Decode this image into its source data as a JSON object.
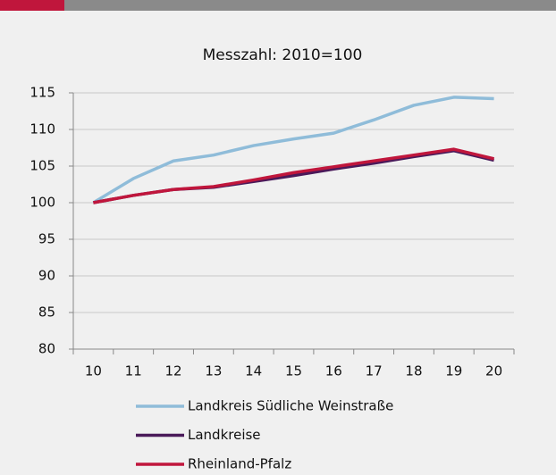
{
  "chart_data": {
    "type": "line",
    "title": "Messzahl: 2010=100",
    "categories": [
      "10",
      "11",
      "12",
      "13",
      "14",
      "15",
      "16",
      "17",
      "18",
      "19",
      "20"
    ],
    "series": [
      {
        "name": "Landkreis Südliche Weinstraße",
        "color": "#8fbcd9",
        "values": [
          100,
          103.3,
          105.7,
          106.5,
          107.8,
          108.7,
          109.5,
          111.3,
          113.3,
          114.4,
          114.2
        ]
      },
      {
        "name": "Landkreise",
        "color": "#4a1a5a",
        "values": [
          100,
          101,
          101.8,
          102.1,
          102.9,
          103.7,
          104.6,
          105.4,
          106.3,
          107.1,
          105.8
        ]
      },
      {
        "name": "Rheinland-Pfalz",
        "color": "#c0163c",
        "values": [
          100,
          101,
          101.8,
          102.2,
          103.1,
          104.1,
          104.9,
          105.7,
          106.5,
          107.3,
          106
        ]
      }
    ],
    "ylim": [
      80,
      115
    ],
    "yticks": [
      80,
      85,
      90,
      95,
      100,
      105,
      110,
      115
    ],
    "grid": true
  }
}
